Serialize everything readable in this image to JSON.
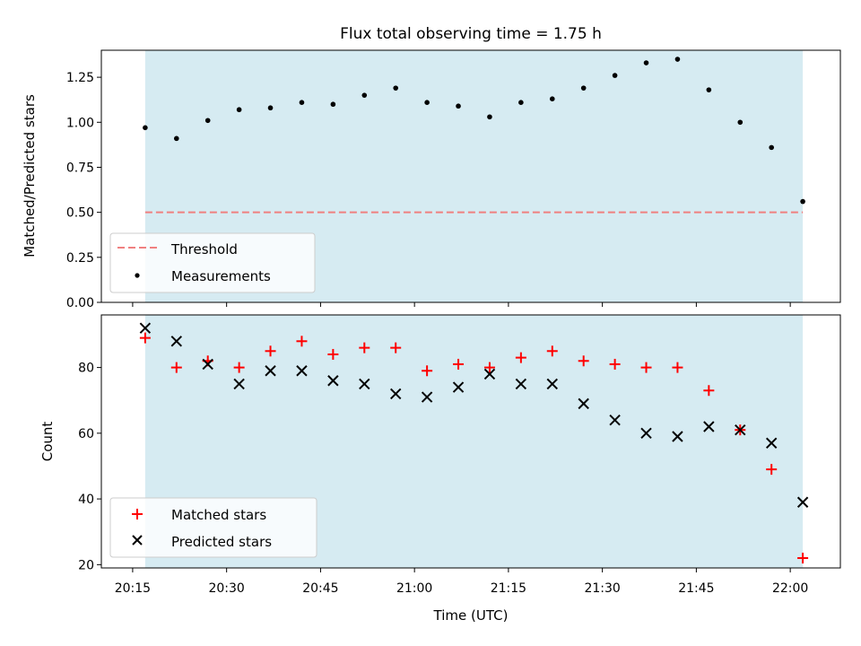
{
  "chart_data": [
    {
      "type": "scatter",
      "title": "Flux total observing time = 1.75 h",
      "xlabel": "",
      "ylabel": "Matched/Predicted stars",
      "ylim": [
        0,
        1.4
      ],
      "yticks": [
        0.0,
        0.25,
        0.5,
        0.75,
        1.0,
        1.25
      ],
      "ytick_labels": [
        "0.00",
        "0.25",
        "0.50",
        "0.75",
        "1.00",
        "1.25"
      ],
      "threshold": {
        "name": "Threshold",
        "value": 0.5,
        "color": "#f08080",
        "style": "dashed"
      },
      "shaded_span": {
        "x_start": "20:17",
        "x_end": "22:02",
        "color": "#add8e6"
      },
      "series": [
        {
          "name": "Measurements",
          "marker": "dot",
          "color": "#000000",
          "x": [
            "20:17",
            "20:22",
            "20:27",
            "20:32",
            "20:37",
            "20:42",
            "20:47",
            "20:52",
            "20:57",
            "21:02",
            "21:07",
            "21:12",
            "21:17",
            "21:22",
            "21:27",
            "21:32",
            "21:37",
            "21:42",
            "21:47",
            "21:52",
            "21:57",
            "22:02"
          ],
          "values": [
            0.97,
            0.91,
            1.01,
            1.07,
            1.08,
            1.11,
            1.1,
            1.15,
            1.19,
            1.11,
            1.09,
            1.03,
            1.11,
            1.13,
            1.19,
            1.26,
            1.33,
            1.35,
            1.18,
            1.0,
            0.86,
            0.56
          ]
        }
      ],
      "legend": {
        "placement": "lower-left",
        "entries": [
          "Threshold",
          "Measurements"
        ]
      },
      "grid": false
    },
    {
      "type": "scatter",
      "title": "",
      "xlabel": "Time (UTC)",
      "ylabel": "Count",
      "xlim": [
        "20:10",
        "22:08"
      ],
      "xticks": [
        "20:15",
        "20:30",
        "20:45",
        "21:00",
        "21:15",
        "21:30",
        "21:45",
        "22:00"
      ],
      "ylim": [
        19,
        96
      ],
      "yticks": [
        20,
        40,
        60,
        80
      ],
      "shaded_span": {
        "x_start": "20:17",
        "x_end": "22:02",
        "color": "#add8e6"
      },
      "series": [
        {
          "name": "Matched stars",
          "marker": "plus",
          "color": "#ff0000",
          "x": [
            "20:17",
            "20:22",
            "20:27",
            "20:32",
            "20:37",
            "20:42",
            "20:47",
            "20:52",
            "20:57",
            "21:02",
            "21:07",
            "21:12",
            "21:17",
            "21:22",
            "21:27",
            "21:32",
            "21:37",
            "21:42",
            "21:47",
            "21:52",
            "21:57",
            "22:02"
          ],
          "values": [
            89,
            80,
            82,
            80,
            85,
            88,
            84,
            86,
            86,
            79,
            81,
            80,
            83,
            85,
            82,
            81,
            80,
            80,
            73,
            61,
            49,
            22
          ]
        },
        {
          "name": "Predicted stars",
          "marker": "x",
          "color": "#000000",
          "x": [
            "20:17",
            "20:22",
            "20:27",
            "20:32",
            "20:37",
            "20:42",
            "20:47",
            "20:52",
            "20:57",
            "21:02",
            "21:07",
            "21:12",
            "21:17",
            "21:22",
            "21:27",
            "21:32",
            "21:37",
            "21:42",
            "21:47",
            "21:52",
            "21:57",
            "22:02"
          ],
          "values": [
            92,
            88,
            81,
            75,
            79,
            79,
            76,
            75,
            72,
            71,
            74,
            78,
            75,
            75,
            69,
            64,
            60,
            59,
            62,
            61,
            57,
            39
          ]
        }
      ],
      "legend": {
        "placement": "lower-left",
        "entries": [
          "Matched stars",
          "Predicted stars"
        ]
      },
      "grid": false
    }
  ]
}
